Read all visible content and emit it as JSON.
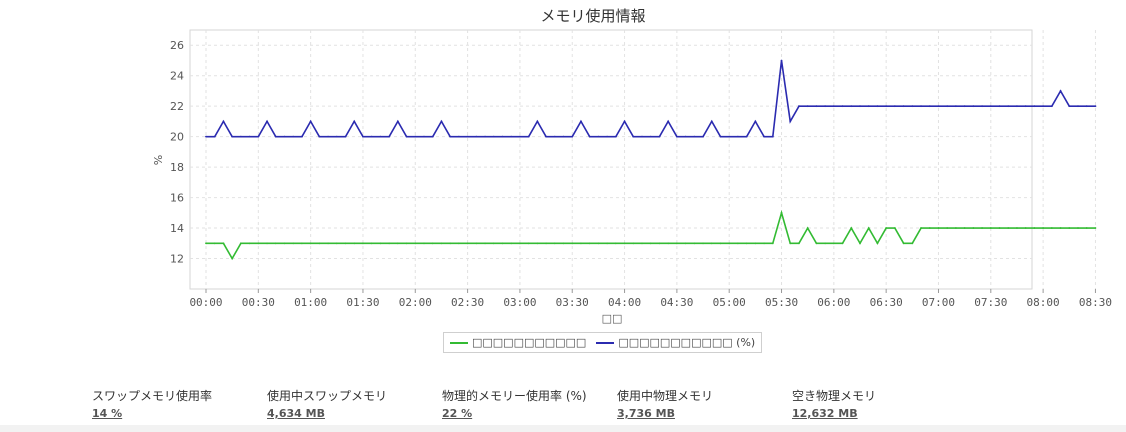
{
  "chart_data": {
    "type": "line",
    "title": "メモリ使用情報",
    "xlabel": "□□",
    "ylabel": "%",
    "ylim": [
      10,
      27
    ],
    "yticks": [
      12,
      14,
      16,
      18,
      20,
      22,
      24,
      26
    ],
    "x_ticks": [
      "00:00",
      "00:30",
      "01:00",
      "01:30",
      "02:00",
      "02:30",
      "03:00",
      "03:30",
      "04:00",
      "04:30",
      "05:00",
      "05:30",
      "06:00",
      "06:30",
      "07:00",
      "07:30",
      "08:00",
      "08:30"
    ],
    "x": [
      "00:00",
      "00:05",
      "00:10",
      "00:15",
      "00:20",
      "00:25",
      "00:30",
      "00:35",
      "00:40",
      "00:45",
      "00:50",
      "00:55",
      "01:00",
      "01:05",
      "01:10",
      "01:15",
      "01:20",
      "01:25",
      "01:30",
      "01:35",
      "01:40",
      "01:45",
      "01:50",
      "01:55",
      "02:00",
      "02:05",
      "02:10",
      "02:15",
      "02:20",
      "02:25",
      "02:30",
      "02:35",
      "02:40",
      "02:45",
      "02:50",
      "02:55",
      "03:00",
      "03:05",
      "03:10",
      "03:15",
      "03:20",
      "03:25",
      "03:30",
      "03:35",
      "03:40",
      "03:45",
      "03:50",
      "03:55",
      "04:00",
      "04:05",
      "04:10",
      "04:15",
      "04:20",
      "04:25",
      "04:30",
      "04:35",
      "04:40",
      "04:45",
      "04:50",
      "04:55",
      "05:00",
      "05:05",
      "05:10",
      "05:15",
      "05:20",
      "05:25",
      "05:30",
      "05:35",
      "05:40",
      "05:45",
      "05:50",
      "05:55",
      "06:00",
      "06:05",
      "06:10",
      "06:15",
      "06:20",
      "06:25",
      "06:30",
      "06:35",
      "06:40",
      "06:45",
      "06:50",
      "06:55",
      "07:00",
      "07:05",
      "07:10",
      "07:15",
      "07:20",
      "07:25",
      "07:30",
      "07:35",
      "07:40",
      "07:45",
      "07:50",
      "07:55",
      "08:00",
      "08:05",
      "08:10",
      "08:15",
      "08:20",
      "08:25",
      "08:30"
    ],
    "grid": true,
    "legend_position": "bottom",
    "series": [
      {
        "name": "□□□□□□□□□□□",
        "color": "#33bb33",
        "values": [
          13,
          13,
          13,
          12,
          13,
          13,
          13,
          13,
          13,
          13,
          13,
          13,
          13,
          13,
          13,
          13,
          13,
          13,
          13,
          13,
          13,
          13,
          13,
          13,
          13,
          13,
          13,
          13,
          13,
          13,
          13,
          13,
          13,
          13,
          13,
          13,
          13,
          13,
          13,
          13,
          13,
          13,
          13,
          13,
          13,
          13,
          13,
          13,
          13,
          13,
          13,
          13,
          13,
          13,
          13,
          13,
          13,
          13,
          13,
          13,
          13,
          13,
          13,
          13,
          13,
          13,
          15,
          13,
          13,
          14,
          13,
          13,
          13,
          13,
          14,
          13,
          14,
          13,
          14,
          14,
          13,
          13,
          14,
          14,
          14,
          14,
          14,
          14,
          14,
          14,
          14,
          14,
          14,
          14,
          14,
          14,
          14,
          14,
          14,
          14,
          14,
          14,
          14
        ]
      },
      {
        "name": "□□□□□□□□□□□ (%)",
        "color": "#2b2bb0",
        "values": [
          20,
          20,
          21,
          20,
          20,
          20,
          20,
          21,
          20,
          20,
          20,
          20,
          21,
          20,
          20,
          20,
          20,
          21,
          20,
          20,
          20,
          20,
          21,
          20,
          20,
          20,
          20,
          21,
          20,
          20,
          20,
          20,
          20,
          20,
          20,
          20,
          20,
          20,
          21,
          20,
          20,
          20,
          20,
          21,
          20,
          20,
          20,
          20,
          21,
          20,
          20,
          20,
          20,
          21,
          20,
          20,
          20,
          20,
          21,
          20,
          20,
          20,
          20,
          21,
          20,
          20,
          25,
          21,
          22,
          22,
          22,
          22,
          22,
          22,
          22,
          22,
          22,
          22,
          22,
          22,
          22,
          22,
          22,
          22,
          22,
          22,
          22,
          22,
          22,
          22,
          22,
          22,
          22,
          22,
          22,
          22,
          22,
          22,
          23,
          22,
          22,
          22,
          22
        ]
      }
    ]
  },
  "stats": [
    {
      "label": "スワップメモリ使用率",
      "value": "14 %"
    },
    {
      "label": "使用中スワップメモリ",
      "value": "4,634 MB"
    },
    {
      "label": "物理的メモリー使用率 (%)",
      "value": "22 %"
    },
    {
      "label": "使用中物理メモリ",
      "value": "3,736 MB"
    },
    {
      "label": "空き物理メモリ",
      "value": "12,632 MB"
    }
  ]
}
